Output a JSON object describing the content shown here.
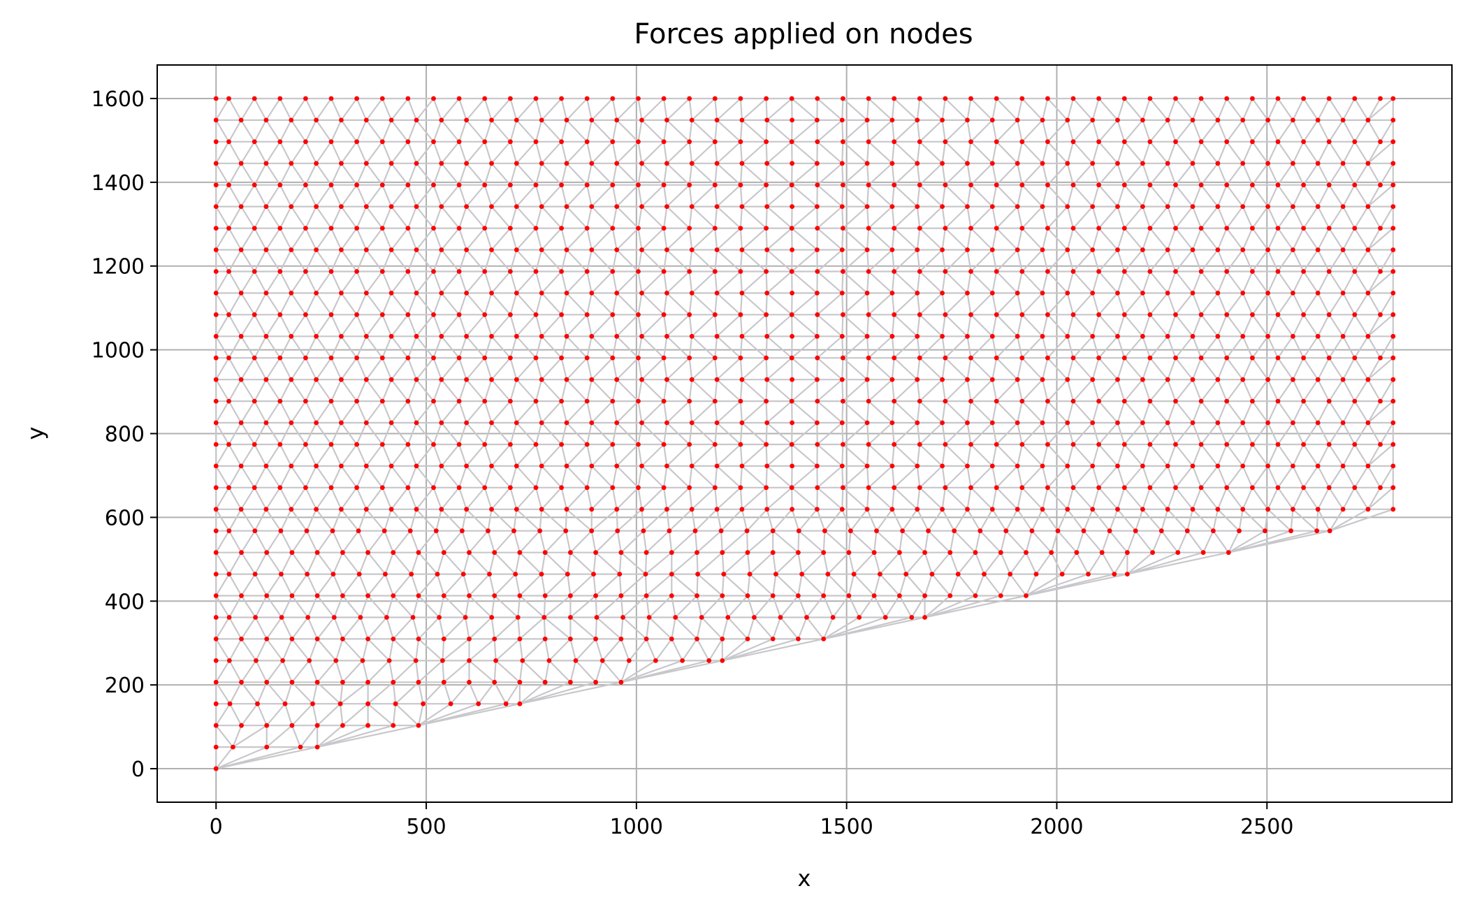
{
  "chart_data": {
    "type": "scatter",
    "title": "Forces applied on nodes",
    "xlabel": "x",
    "ylabel": "y",
    "xlim": [
      -140,
      2940
    ],
    "ylim": [
      -80,
      1680
    ],
    "xticks": [
      0,
      500,
      1000,
      1500,
      2000,
      2500
    ],
    "yticks": [
      0,
      200,
      400,
      600,
      800,
      1000,
      1200,
      1400,
      1600
    ],
    "grid": true,
    "domain_polygon": [
      [
        0,
        0
      ],
      [
        2800,
        600
      ],
      [
        2800,
        1600
      ],
      [
        0,
        1600
      ]
    ],
    "mesh_spacing": 60,
    "colors": {
      "nodes": "#ff0000",
      "mesh": "#c8c8cc",
      "grid": "#b0b0b0"
    }
  }
}
